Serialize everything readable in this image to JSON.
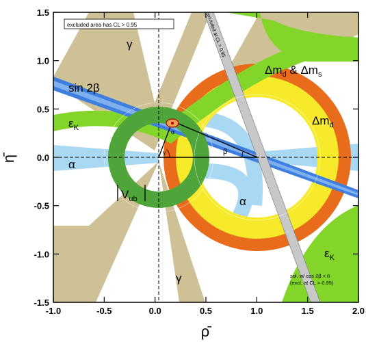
{
  "chart_data": {
    "type": "scatter",
    "xlabel": "ρ̄",
    "ylabel": "η̄",
    "xlim": [
      -1.0,
      2.0
    ],
    "ylim": [
      -1.5,
      1.5
    ],
    "x_ticks": [
      "-1.0",
      "-0.5",
      "0.0",
      "0.5",
      "1.0",
      "1.5",
      "2.0"
    ],
    "y_ticks": [
      "-1.5",
      "-1.0",
      "-0.5",
      "0.0",
      "0.5",
      "1.0",
      "1.5"
    ],
    "apex": {
      "rho": 0.14,
      "eta": 0.35
    },
    "annotations": {
      "excluded_note": "excluded area has CL > 0.95",
      "excluded_diag": "excluded at CL > 0.95",
      "sol_line1": "sol. w/ cos 2β < 0",
      "sol_line2": "(excl. at CL > 0.95)",
      "gamma_top": "γ",
      "gamma_bottom": "γ",
      "sin2beta": "sin 2β",
      "dmd_dms": "Δm",
      "dmd_dms_sub1": "d",
      "dmd_dms_amp": " & Δm",
      "dmd_dms_sub2": "s",
      "dmd": "Δm",
      "dmd_sub": "d",
      "epsK_left": "ε",
      "epsK_left_sub": "K",
      "epsK_right": "ε",
      "epsK_right_sub": "K",
      "alpha_left": "α",
      "alpha_right": "α",
      "vub": "V",
      "vub_sub": "ub",
      "beta": "β",
      "tri_alpha": "α",
      "tri_gamma": "γ"
    },
    "colors": {
      "gamma": "#cfc196",
      "sin2beta": "#3f7fe0",
      "dm": "#e96b1c",
      "dmd": "#f7ea2a",
      "epsK": "#83d52a",
      "alpha": "#a9d8f2",
      "vub": "#4fa43a",
      "excluded_band": "#b8b8b8"
    }
  }
}
